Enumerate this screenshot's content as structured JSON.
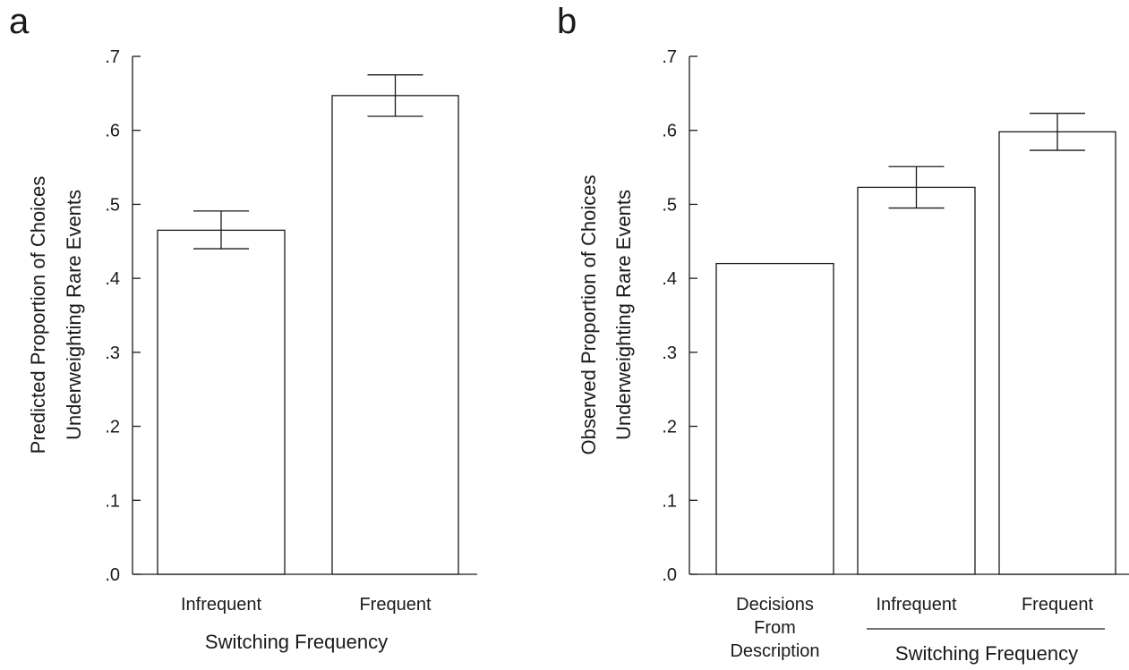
{
  "chart_data": [
    {
      "panel": "a",
      "type": "bar",
      "categories": [
        "Infrequent",
        "Frequent"
      ],
      "values": [
        0.465,
        0.647
      ],
      "error": [
        [
          0.44,
          0.491
        ],
        [
          0.619,
          0.675
        ]
      ],
      "ylabel_lines": [
        "Predicted Proportion of Choices",
        "Underweighting Rare Events"
      ],
      "xlabel": "Switching Frequency",
      "ylim": [
        0,
        0.7
      ],
      "yticks": [
        0,
        0.1,
        0.2,
        0.3,
        0.4,
        0.5,
        0.6,
        0.7
      ],
      "ytick_labels": [
        ".0",
        ".1",
        ".2",
        ".3",
        ".4",
        ".5",
        ".6",
        ".7"
      ],
      "grid": false,
      "legend": "none"
    },
    {
      "panel": "b",
      "type": "bar",
      "categories": [
        "Decisions From Description",
        "Infrequent",
        "Frequent"
      ],
      "category_lines": [
        [
          "Decisions",
          "From",
          "Description"
        ],
        [
          "Infrequent"
        ],
        [
          "Frequent"
        ]
      ],
      "values": [
        0.42,
        0.523,
        0.598
      ],
      "error": [
        null,
        [
          0.495,
          0.551
        ],
        [
          0.573,
          0.623
        ]
      ],
      "ylabel_lines": [
        "Observed Proportion of Choices",
        "Underweighting Rare Events"
      ],
      "xlabel": "Switching Frequency",
      "ylim": [
        0,
        0.7
      ],
      "yticks": [
        0,
        0.1,
        0.2,
        0.3,
        0.4,
        0.5,
        0.6,
        0.7
      ],
      "ytick_labels": [
        ".0",
        ".1",
        ".2",
        ".3",
        ".4",
        ".5",
        ".6",
        ".7"
      ],
      "grid": false,
      "legend": "none"
    }
  ]
}
